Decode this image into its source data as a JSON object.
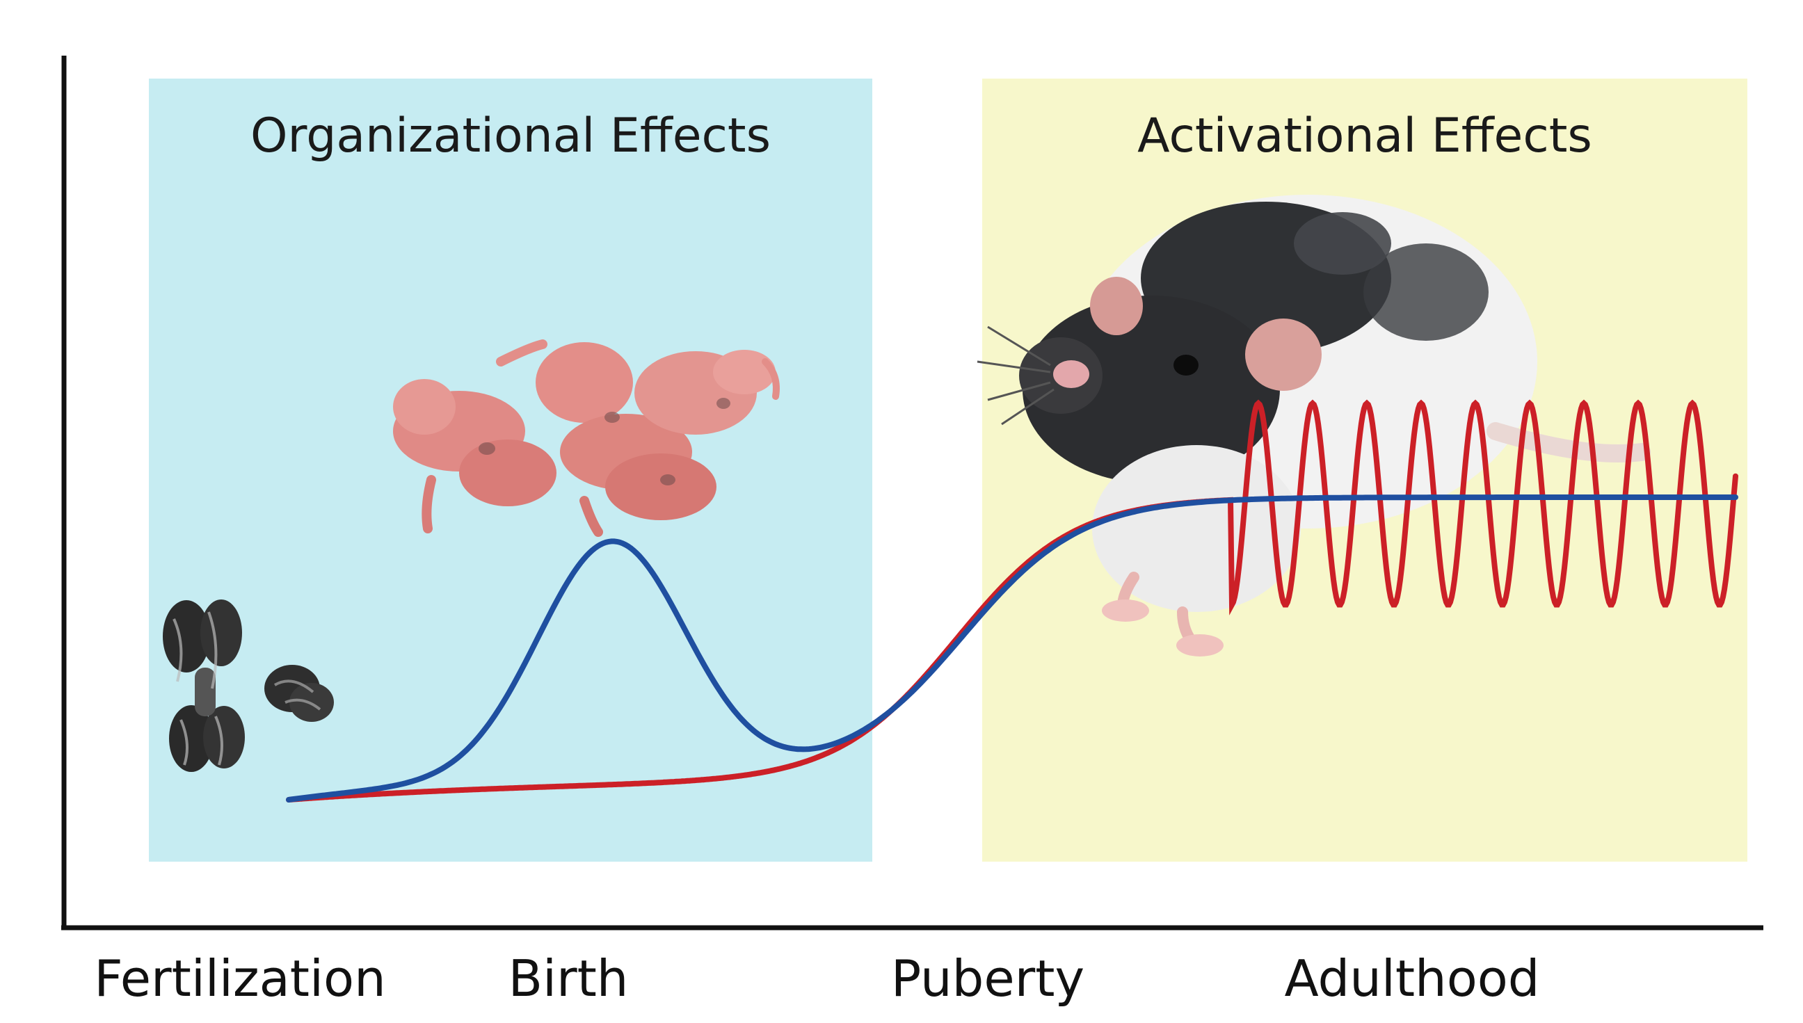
{
  "panels": {
    "left": {
      "title": "Organizational Effects",
      "color": "#c6ecf2"
    },
    "right": {
      "title": "Activational Effects",
      "color": "#f7f7cb"
    }
  },
  "timeline": {
    "labels": [
      "Fertilization",
      "Birth",
      "Puberty",
      "Adulthood"
    ]
  },
  "curves": {
    "blue": "#1f4fa0",
    "red": "#cc2027"
  },
  "illustrations": {
    "chromosomes": "chromosome-icon",
    "pups": "newborn-rat-pups-icon",
    "adult_rat": "adult-rat-icon"
  }
}
